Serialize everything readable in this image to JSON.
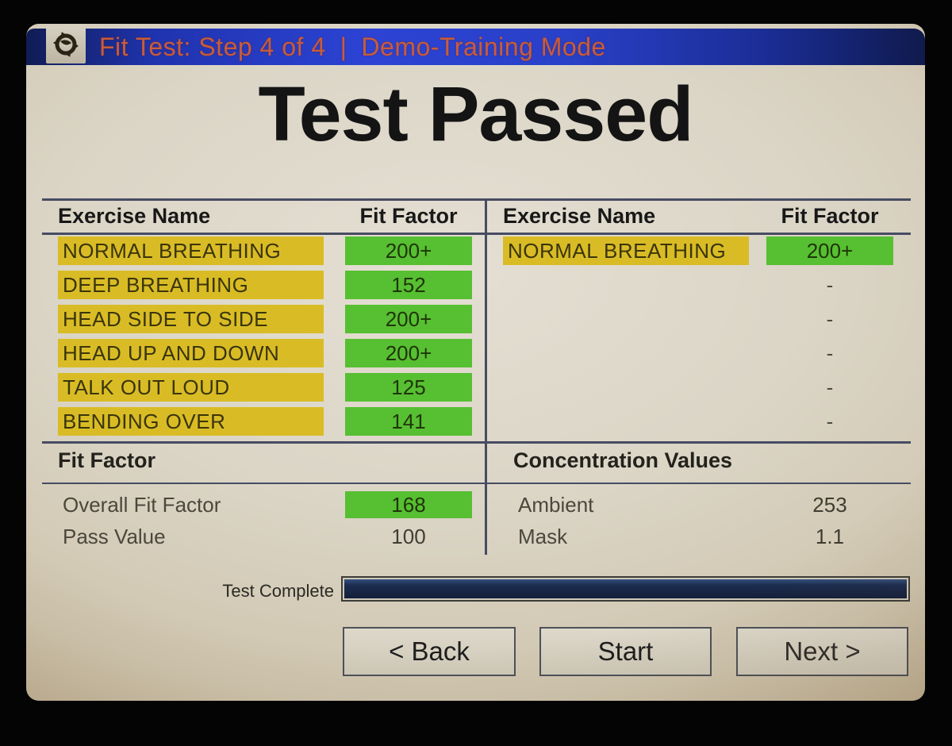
{
  "titlebar": {
    "title": "Fit Test: Step 4 of 4",
    "separator": "|",
    "mode": "Demo-Training Mode",
    "logo": "tsi-logo"
  },
  "heading": "Test Passed",
  "results": {
    "left": {
      "col_name": "Exercise Name",
      "col_value": "Fit Factor",
      "rows": [
        {
          "name": "NORMAL BREATHING",
          "value": "200+",
          "highlight": true
        },
        {
          "name": "DEEP BREATHING",
          "value": "152",
          "highlight": true
        },
        {
          "name": "HEAD SIDE TO SIDE",
          "value": "200+",
          "highlight": true
        },
        {
          "name": "HEAD UP AND DOWN",
          "value": "200+",
          "highlight": true
        },
        {
          "name": "TALK OUT LOUD",
          "value": "125",
          "highlight": true
        },
        {
          "name": "BENDING OVER",
          "value": "141",
          "highlight": true
        }
      ]
    },
    "right": {
      "col_name": "Exercise Name",
      "col_value": "Fit Factor",
      "rows": [
        {
          "name": "NORMAL BREATHING",
          "value": "200+",
          "highlight": true
        },
        {
          "name": "",
          "value": "-",
          "highlight": false
        },
        {
          "name": "",
          "value": "-",
          "highlight": false
        },
        {
          "name": "",
          "value": "-",
          "highlight": false
        },
        {
          "name": "",
          "value": "-",
          "highlight": false
        },
        {
          "name": "",
          "value": "-",
          "highlight": false
        }
      ]
    }
  },
  "fit_factor_section": {
    "title": "Fit Factor",
    "rows": [
      {
        "label": "Overall Fit Factor",
        "value": "168",
        "highlight": true
      },
      {
        "label": "Pass Value",
        "value": "100",
        "highlight": false
      }
    ]
  },
  "concentration_section": {
    "title": "Concentration Values",
    "rows": [
      {
        "label": "Ambient",
        "value": "253"
      },
      {
        "label": "Mask",
        "value": "1.1"
      }
    ]
  },
  "progress": {
    "label": "Test Complete",
    "percent": 100
  },
  "buttons": {
    "back": "< Back",
    "start": "Start",
    "next": "Next >"
  },
  "colors": {
    "titlebar_blue": "#2a41cc",
    "title_text_orange": "#c85c3a",
    "highlight_yellow": "#d9bc25",
    "highlight_green": "#57bf32",
    "progress_navy": "#1b2c4e",
    "screen_beige": "#d8d2c3"
  }
}
